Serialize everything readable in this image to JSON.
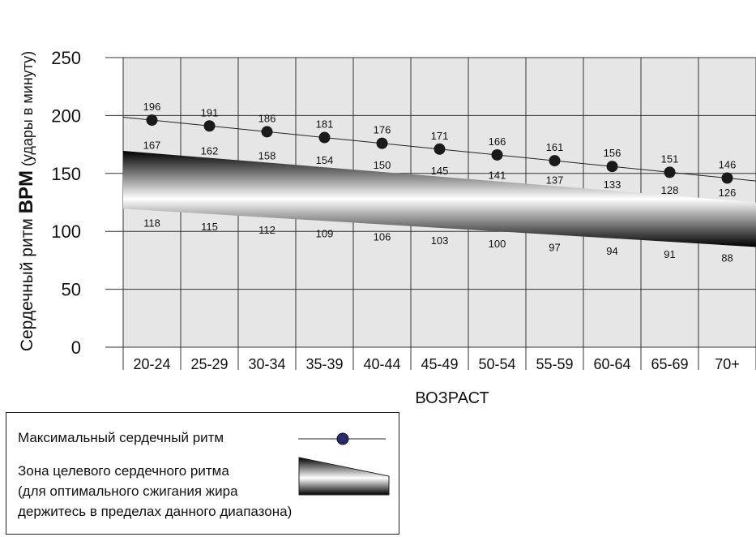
{
  "chart_data": {
    "type": "line",
    "title": "",
    "ylabel_main": "Сердечный ритм ",
    "ylabel_bold": "BPM",
    "ylabel_suffix": " (удары в минуту)",
    "xlabel": "ВОЗРАСТ",
    "ylim": [
      0,
      250
    ],
    "yticks": [
      0,
      50,
      100,
      150,
      200,
      250
    ],
    "grid": true,
    "categories": [
      "20-24",
      "25-29",
      "30-34",
      "35-39",
      "40-44",
      "45-49",
      "50-54",
      "55-59",
      "60-64",
      "65-69",
      "70+"
    ],
    "series": [
      {
        "name": "Максимальный сердечный ритм",
        "style": "line-marker",
        "values": [
          196,
          191,
          186,
          181,
          176,
          171,
          166,
          161,
          156,
          151,
          146
        ]
      },
      {
        "name": "Зона целевого сердечного ритма upper",
        "style": "band-upper",
        "values": [
          167,
          162,
          158,
          154,
          150,
          145,
          141,
          137,
          133,
          128,
          126
        ]
      },
      {
        "name": "Зона целевого сердечного ритма lower",
        "style": "band-lower",
        "values": [
          118,
          115,
          112,
          109,
          106,
          103,
          100,
          97,
          94,
          91,
          88
        ]
      }
    ]
  },
  "legend": {
    "max_label": "Максимальный сердечный ритм",
    "zone_label_line1": "Зона целевого сердечного ритма",
    "zone_label_line2": "(для оптимального сжигания жира",
    "zone_label_line3": "держитесь в пределах данного диапазона)"
  },
  "colors": {
    "plot_bg": "#e6e6e6",
    "grid": "#333333",
    "marker": "#1a1a1a",
    "legend_marker": "#2a2a6a"
  }
}
